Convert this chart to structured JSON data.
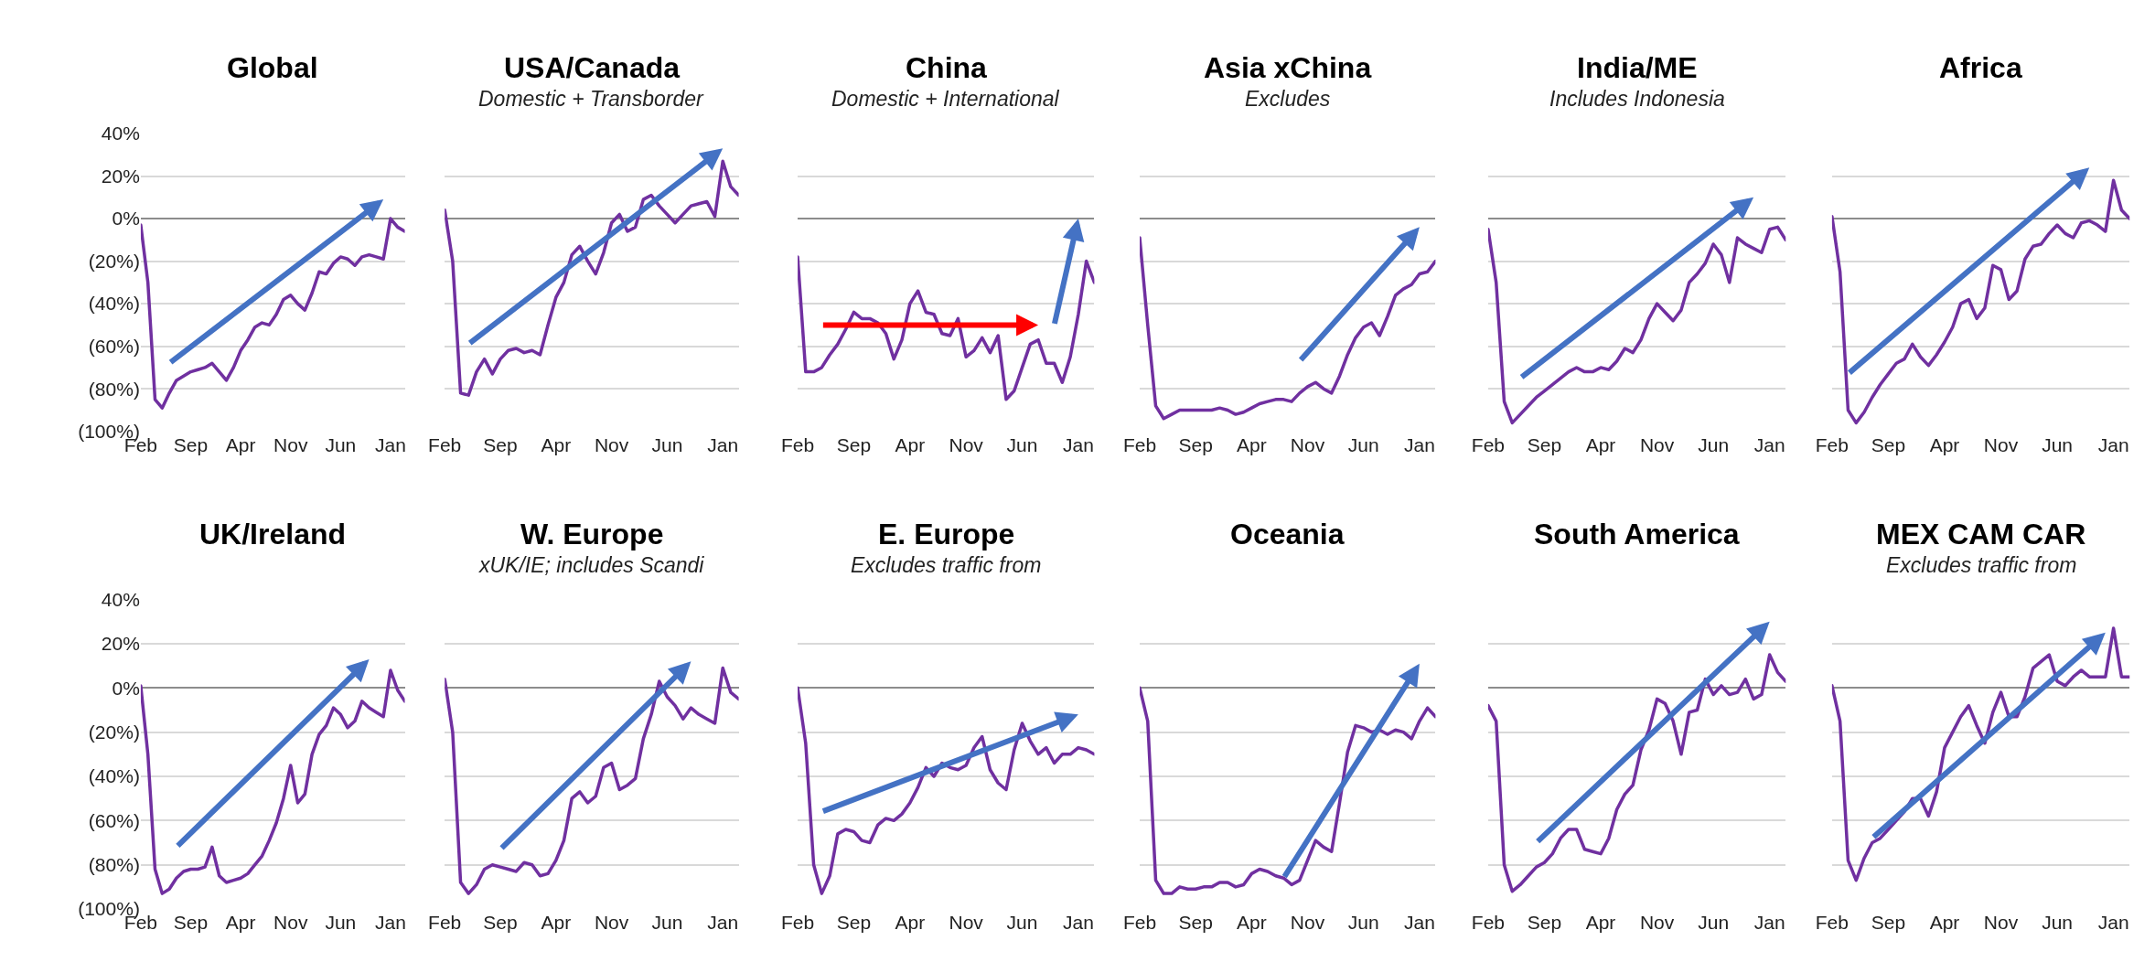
{
  "chart_data": [
    {
      "type": "line",
      "title": "Global",
      "ylim": [
        -100,
        40
      ],
      "grid": "y",
      "categories": [
        "Feb",
        null,
        null,
        null,
        null,
        null,
        null,
        "Sep",
        null,
        null,
        null,
        null,
        null,
        null,
        "Apr",
        null,
        null,
        null,
        null,
        null,
        null,
        "Nov",
        null,
        null,
        null,
        null,
        null,
        null,
        "Jun",
        null,
        null,
        null,
        null,
        null,
        null,
        "Jan",
        null,
        null
      ],
      "yticks": [
        {
          "value": -100,
          "label": "(100%)"
        },
        {
          "value": -80,
          "label": "(80%)"
        },
        {
          "value": -60,
          "label": "(60%)"
        },
        {
          "value": -40,
          "label": "(40%)"
        },
        {
          "value": -20,
          "label": "(20%)"
        },
        {
          "value": 0,
          "label": "0%"
        },
        {
          "value": 20,
          "label": "20%"
        },
        {
          "value": 40,
          "label": "40%"
        }
      ],
      "series": [
        {
          "color": "#7030a0",
          "values": [
            -3,
            -30,
            -85,
            -89,
            -82,
            -76,
            -74,
            -72,
            -71,
            -70,
            -68,
            -72,
            -76,
            -70,
            -62,
            -57,
            -51,
            -49,
            -50,
            -45,
            -38,
            -36,
            -40,
            -43,
            -35,
            -25,
            -26,
            -21,
            -18,
            -19,
            -22,
            -18,
            -17,
            -18,
            -19,
            0,
            -4,
            -6
          ]
        }
      ]
    },
    {
      "type": "line",
      "title": "USA/Canada",
      "subtitle": "Domestic + Transborder",
      "ylim": [
        -100,
        40
      ],
      "grid": "y",
      "tick_labels": "x",
      "categories": [
        "Feb",
        null,
        null,
        null,
        null,
        null,
        null,
        "Sep",
        null,
        null,
        null,
        null,
        null,
        null,
        "Apr",
        null,
        null,
        null,
        null,
        null,
        null,
        "Nov",
        null,
        null,
        null,
        null,
        null,
        null,
        "Jun",
        null,
        null,
        null,
        null,
        null,
        null,
        "Jan",
        null,
        null
      ],
      "yticks": [
        -100,
        -80,
        -60,
        -40,
        -20,
        0,
        20,
        40
      ],
      "series": [
        {
          "color": "#7030a0",
          "values": [
            4,
            -20,
            -82,
            -83,
            -72,
            -66,
            -73,
            -66,
            -62,
            -61,
            -63,
            -62,
            -64,
            -50,
            -37,
            -30,
            -17,
            -13,
            -20,
            -26,
            -16,
            -2,
            2,
            -6,
            -4,
            9,
            11,
            6,
            2,
            -2,
            2,
            6,
            7,
            8,
            1,
            27,
            15,
            11
          ]
        }
      ]
    },
    {
      "type": "line",
      "title": "China",
      "subtitle": "Domestic + International",
      "ylim": [
        -100,
        40
      ],
      "grid": "y",
      "tick_labels": "x",
      "categories": [
        "Feb",
        null,
        null,
        null,
        null,
        null,
        null,
        "Sep",
        null,
        null,
        null,
        null,
        null,
        null,
        "Apr",
        null,
        null,
        null,
        null,
        null,
        null,
        "Nov",
        null,
        null,
        null,
        null,
        null,
        null,
        "Jun",
        null,
        null,
        null,
        null,
        null,
        null,
        "Jan",
        null,
        null
      ],
      "yticks": [
        -100,
        -80,
        -60,
        -40,
        -20,
        0,
        20,
        40
      ],
      "series": [
        {
          "color": "#7030a0",
          "values": [
            -18,
            -72,
            -72,
            -70,
            -64,
            -59,
            -52,
            -44,
            -47,
            -47,
            -49,
            -54,
            -66,
            -57,
            -40,
            -34,
            -44,
            -45,
            -54,
            -55,
            -47,
            -65,
            -62,
            -56,
            -63,
            -55,
            -85,
            -81,
            -70,
            -59,
            -57,
            -68,
            -68,
            -77,
            -65,
            -45,
            -20,
            -30
          ]
        }
      ]
    },
    {
      "type": "line",
      "title": "Asia xChina",
      "subtitle": "Excludes",
      "ylim": [
        -100,
        40
      ],
      "grid": "y",
      "tick_labels": "x",
      "categories": [
        "Feb",
        null,
        null,
        null,
        null,
        null,
        null,
        "Sep",
        null,
        null,
        null,
        null,
        null,
        null,
        "Apr",
        null,
        null,
        null,
        null,
        null,
        null,
        "Nov",
        null,
        null,
        null,
        null,
        null,
        null,
        "Jun",
        null,
        null,
        null,
        null,
        null,
        null,
        "Jan",
        null,
        null
      ],
      "yticks": [
        -100,
        -80,
        -60,
        -40,
        -20,
        0,
        20,
        40
      ],
      "series": [
        {
          "color": "#7030a0",
          "values": [
            -9,
            -50,
            -88,
            -94,
            -92,
            -90,
            -90,
            -90,
            -90,
            -90,
            -89,
            -90,
            -92,
            -91,
            -89,
            -87,
            -86,
            -85,
            -85,
            -86,
            -82,
            -79,
            -77,
            -80,
            -82,
            -74,
            -64,
            -56,
            -51,
            -49,
            -55,
            -46,
            -36,
            -33,
            -31,
            -26,
            -25,
            -20
          ]
        }
      ]
    },
    {
      "type": "line",
      "title": "India/ME",
      "subtitle": "Includes Indonesia",
      "ylim": [
        -100,
        40
      ],
      "grid": "y",
      "tick_labels": "x",
      "categories": [
        "Feb",
        null,
        null,
        null,
        null,
        null,
        null,
        "Sep",
        null,
        null,
        null,
        null,
        null,
        null,
        "Apr",
        null,
        null,
        null,
        null,
        null,
        null,
        "Nov",
        null,
        null,
        null,
        null,
        null,
        null,
        "Jun",
        null,
        null,
        null,
        null,
        null,
        null,
        "Jan",
        null,
        null
      ],
      "yticks": [
        -100,
        -80,
        -60,
        -40,
        -20,
        0,
        20,
        40
      ],
      "series": [
        {
          "color": "#7030a0",
          "values": [
            -5,
            -30,
            -86,
            -96,
            -92,
            -88,
            -84,
            -81,
            -78,
            -75,
            -72,
            -70,
            -72,
            -72,
            -70,
            -71,
            -67,
            -61,
            -63,
            -57,
            -47,
            -40,
            -44,
            -48,
            -43,
            -30,
            -26,
            -21,
            -12,
            -17,
            -30,
            -9,
            -12,
            -14,
            -16,
            -5,
            -4,
            -10
          ]
        }
      ]
    },
    {
      "type": "line",
      "title": "Africa",
      "ylim": [
        -100,
        40
      ],
      "grid": "y",
      "tick_labels": "x",
      "categories": [
        "Feb",
        null,
        null,
        null,
        null,
        null,
        null,
        "Sep",
        null,
        null,
        null,
        null,
        null,
        null,
        "Apr",
        null,
        null,
        null,
        null,
        null,
        null,
        "Nov",
        null,
        null,
        null,
        null,
        null,
        null,
        "Jun",
        null,
        null,
        null,
        null,
        null,
        null,
        "Jan",
        null,
        null
      ],
      "yticks": [
        -100,
        -80,
        -60,
        -40,
        -20,
        0,
        20,
        40
      ],
      "series": [
        {
          "color": "#7030a0",
          "values": [
            1,
            -25,
            -90,
            -96,
            -91,
            -84,
            -78,
            -73,
            -68,
            -66,
            -59,
            -65,
            -69,
            -64,
            -58,
            -51,
            -40,
            -38,
            -47,
            -42,
            -22,
            -24,
            -38,
            -34,
            -19,
            -13,
            -12,
            -7,
            -3,
            -7,
            -9,
            -2,
            -1,
            -3,
            -6,
            18,
            4,
            0
          ]
        }
      ]
    },
    {
      "type": "line",
      "title": "UK/Ireland",
      "ylim": [
        -100,
        40
      ],
      "grid": "y",
      "categories": [
        "Feb",
        null,
        null,
        null,
        null,
        null,
        null,
        "Sep",
        null,
        null,
        null,
        null,
        null,
        null,
        "Apr",
        null,
        null,
        null,
        null,
        null,
        null,
        "Nov",
        null,
        null,
        null,
        null,
        null,
        null,
        "Jun",
        null,
        null,
        null,
        null,
        null,
        null,
        "Jan",
        null,
        null
      ],
      "yticks": [
        {
          "value": -100,
          "label": "(100%)"
        },
        {
          "value": -80,
          "label": "(80%)"
        },
        {
          "value": -60,
          "label": "(60%)"
        },
        {
          "value": -40,
          "label": "(40%)"
        },
        {
          "value": -20,
          "label": "(20%)"
        },
        {
          "value": 0,
          "label": "0%"
        },
        {
          "value": 20,
          "label": "20%"
        },
        {
          "value": 40,
          "label": "40%"
        }
      ],
      "series": [
        {
          "color": "#7030a0",
          "values": [
            1,
            -30,
            -82,
            -93,
            -91,
            -86,
            -83,
            -82,
            -82,
            -81,
            -72,
            -85,
            -88,
            -87,
            -86,
            -84,
            -80,
            -76,
            -69,
            -61,
            -50,
            -35,
            -52,
            -48,
            -30,
            -21,
            -17,
            -9,
            -12,
            -18,
            -15,
            -6,
            -9,
            -11,
            -13,
            8,
            -1,
            -6
          ]
        }
      ]
    },
    {
      "type": "line",
      "title": "W. Europe",
      "subtitle": "xUK/IE; includes Scandi",
      "ylim": [
        -100,
        40
      ],
      "grid": "y",
      "tick_labels": "x",
      "categories": [
        "Feb",
        null,
        null,
        null,
        null,
        null,
        null,
        "Sep",
        null,
        null,
        null,
        null,
        null,
        null,
        "Apr",
        null,
        null,
        null,
        null,
        null,
        null,
        "Nov",
        null,
        null,
        null,
        null,
        null,
        null,
        "Jun",
        null,
        null,
        null,
        null,
        null,
        null,
        "Jan",
        null,
        null
      ],
      "yticks": [
        -100,
        -80,
        -60,
        -40,
        -20,
        0,
        20,
        40
      ],
      "series": [
        {
          "color": "#7030a0",
          "values": [
            4,
            -20,
            -88,
            -93,
            -89,
            -82,
            -80,
            -81,
            -82,
            -83,
            -79,
            -80,
            -85,
            -84,
            -78,
            -69,
            -50,
            -47,
            -52,
            -49,
            -36,
            -34,
            -46,
            -44,
            -41,
            -23,
            -12,
            3,
            -4,
            -8,
            -14,
            -9,
            -12,
            -14,
            -16,
            9,
            -2,
            -5
          ]
        }
      ]
    },
    {
      "type": "line",
      "title": "E. Europe",
      "subtitle": "Excludes traffic from",
      "ylim": [
        -100,
        40
      ],
      "grid": "y",
      "tick_labels": "x",
      "categories": [
        "Feb",
        null,
        null,
        null,
        null,
        null,
        null,
        "Sep",
        null,
        null,
        null,
        null,
        null,
        null,
        "Apr",
        null,
        null,
        null,
        null,
        null,
        null,
        "Nov",
        null,
        null,
        null,
        null,
        null,
        null,
        "Jun",
        null,
        null,
        null,
        null,
        null,
        null,
        "Jan",
        null,
        null
      ],
      "yticks": [
        -100,
        -80,
        -60,
        -40,
        -20,
        0,
        20,
        40
      ],
      "series": [
        {
          "color": "#7030a0",
          "values": [
            0,
            -25,
            -80,
            -93,
            -85,
            -66,
            -64,
            -65,
            -69,
            -70,
            -62,
            -59,
            -60,
            -57,
            -52,
            -45,
            -36,
            -40,
            -34,
            -36,
            -37,
            -35,
            -27,
            -22,
            -37,
            -43,
            -46,
            -28,
            -16,
            -24,
            -30,
            -27,
            -34,
            -30,
            -30,
            -27,
            -28,
            -30
          ]
        }
      ]
    },
    {
      "type": "line",
      "title": "Oceania",
      "ylim": [
        -100,
        40
      ],
      "grid": "y",
      "tick_labels": "x",
      "categories": [
        "Feb",
        null,
        null,
        null,
        null,
        null,
        null,
        "Sep",
        null,
        null,
        null,
        null,
        null,
        null,
        "Apr",
        null,
        null,
        null,
        null,
        null,
        null,
        "Nov",
        null,
        null,
        null,
        null,
        null,
        null,
        "Jun",
        null,
        null,
        null,
        null,
        null,
        null,
        "Jan",
        null,
        null
      ],
      "yticks": [
        -100,
        -80,
        -60,
        -40,
        -20,
        0,
        20,
        40
      ],
      "series": [
        {
          "color": "#7030a0",
          "values": [
            0,
            -15,
            -87,
            -93,
            -93,
            -90,
            -91,
            -91,
            -90,
            -90,
            -88,
            -88,
            -90,
            -89,
            -84,
            -82,
            -83,
            -85,
            -86,
            -89,
            -87,
            -78,
            -69,
            -72,
            -74,
            -52,
            -29,
            -17,
            -18,
            -20,
            -19,
            -21,
            -19,
            -20,
            -23,
            -15,
            -9,
            -13
          ]
        }
      ]
    },
    {
      "type": "line",
      "title": "South America",
      "ylim": [
        -100,
        40
      ],
      "grid": "y",
      "tick_labels": "x",
      "categories": [
        "Feb",
        null,
        null,
        null,
        null,
        null,
        null,
        "Sep",
        null,
        null,
        null,
        null,
        null,
        null,
        "Apr",
        null,
        null,
        null,
        null,
        null,
        null,
        "Nov",
        null,
        null,
        null,
        null,
        null,
        null,
        "Jun",
        null,
        null,
        null,
        null,
        null,
        null,
        "Jan",
        null,
        null
      ],
      "yticks": [
        -100,
        -80,
        -60,
        -40,
        -20,
        0,
        20,
        40
      ],
      "series": [
        {
          "color": "#7030a0",
          "values": [
            -8,
            -15,
            -80,
            -92,
            -89,
            -85,
            -81,
            -79,
            -75,
            -68,
            -64,
            -64,
            -73,
            -74,
            -75,
            -68,
            -55,
            -48,
            -44,
            -28,
            -19,
            -5,
            -7,
            -15,
            -30,
            -11,
            -10,
            4,
            -3,
            1,
            -3,
            -2,
            4,
            -5,
            -3,
            15,
            7,
            3
          ]
        }
      ]
    },
    {
      "type": "line",
      "title": "MEX CAM CAR",
      "subtitle": "Excludes traffic from",
      "ylim": [
        -100,
        40
      ],
      "grid": "y",
      "tick_labels": "x",
      "categories": [
        "Feb",
        null,
        null,
        null,
        null,
        null,
        null,
        "Sep",
        null,
        null,
        null,
        null,
        null,
        null,
        "Apr",
        null,
        null,
        null,
        null,
        null,
        null,
        "Nov",
        null,
        null,
        null,
        null,
        null,
        null,
        "Jun",
        null,
        null,
        null,
        null,
        null,
        null,
        "Jan",
        null,
        null
      ],
      "yticks": [
        -100,
        -80,
        -60,
        -40,
        -20,
        0,
        20,
        40
      ],
      "series": [
        {
          "color": "#7030a0",
          "values": [
            1,
            -15,
            -78,
            -87,
            -77,
            -70,
            -68,
            -64,
            -60,
            -56,
            -50,
            -50,
            -58,
            -47,
            -27,
            -20,
            -13,
            -8,
            -17,
            -25,
            -11,
            -2,
            -13,
            -13,
            -4,
            9,
            12,
            15,
            3,
            1,
            5,
            8,
            5,
            5,
            5,
            27,
            5,
            5
          ]
        }
      ]
    }
  ]
}
